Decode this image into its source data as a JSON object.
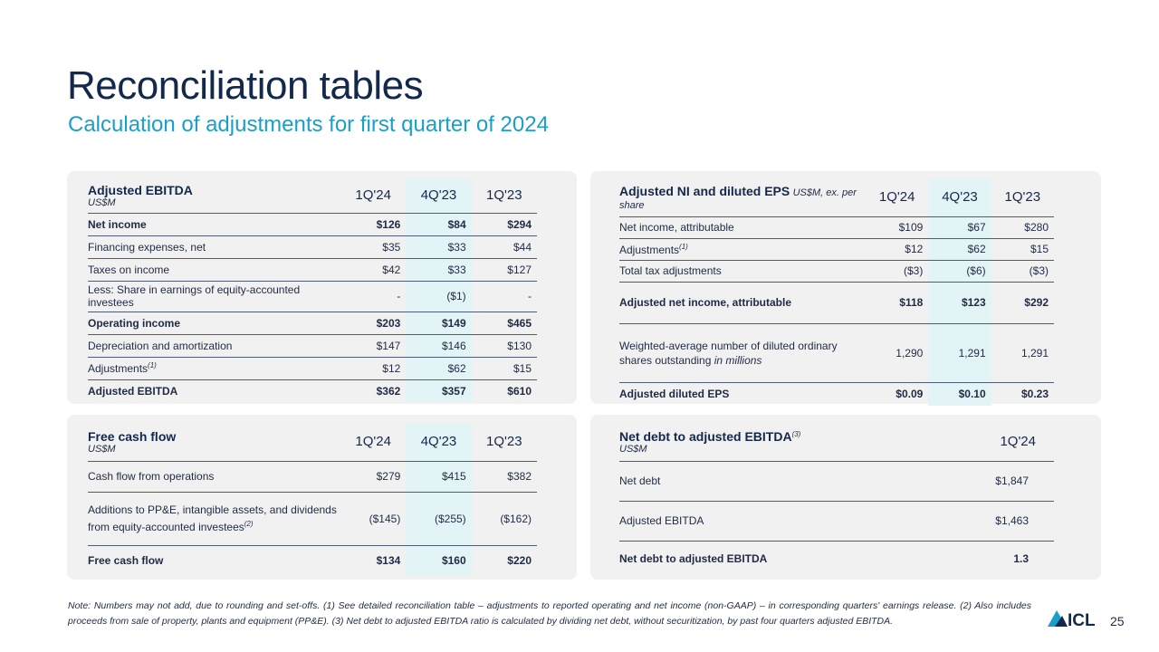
{
  "title": "Reconciliation tables",
  "subtitle": "Calculation of adjustments for first quarter of 2024",
  "colors": {
    "navy": "#14284b",
    "accent": "#1a9fc9",
    "panel": "#f1f1f1",
    "highlight": "#e3f4f6"
  },
  "ebitda": {
    "title": "Adjusted EBITDA",
    "unit": "US$M",
    "cols": [
      "1Q'24",
      "4Q'23",
      "1Q'23"
    ],
    "rows": [
      {
        "label": "Net income",
        "sup": "",
        "values": [
          "$126",
          "$84",
          "$294"
        ]
      },
      {
        "label": "Financing expenses, net",
        "sup": "",
        "values": [
          "$35",
          "$33",
          "$44"
        ]
      },
      {
        "label": "Taxes on income",
        "sup": "",
        "values": [
          "$42",
          "$33",
          "$127"
        ]
      },
      {
        "label": "Less: Share in earnings of equity-accounted investees",
        "sup": "",
        "values": [
          "-",
          "($1)",
          "-"
        ]
      },
      {
        "label": "Operating income",
        "sup": "",
        "values": [
          "$203",
          "$149",
          "$465"
        ]
      },
      {
        "label": "Depreciation and amortization",
        "sup": "",
        "values": [
          "$147",
          "$146",
          "$130"
        ]
      },
      {
        "label": "Adjustments",
        "sup": "(1)",
        "values": [
          "$12",
          "$62",
          "$15"
        ]
      },
      {
        "label": "Adjusted EBITDA",
        "sup": "",
        "values": [
          "$362",
          "$357",
          "$610"
        ]
      }
    ]
  },
  "eps": {
    "title": "Adjusted NI and diluted EPS",
    "unit": "US$M, ex. per share",
    "cols": [
      "1Q'24",
      "4Q'23",
      "1Q'23"
    ],
    "rows": [
      {
        "label": "Net income, attributable",
        "sup": "",
        "values": [
          "$109",
          "$67",
          "$280"
        ]
      },
      {
        "label": "Adjustments",
        "sup": "(1)",
        "values": [
          "$12",
          "$62",
          "$15"
        ]
      },
      {
        "label": "Total tax adjustments",
        "sup": "",
        "values": [
          "($3)",
          "($6)",
          "($3)"
        ]
      },
      {
        "label": "Adjusted net income, attributable",
        "sup": "",
        "values": [
          "$118",
          "$123",
          "$292"
        ]
      },
      {
        "label": "Weighted-average number of diluted ordinary shares outstanding",
        "label_italic": "in millions",
        "sup": "",
        "values": [
          "1,290",
          "1,291",
          "1,291"
        ]
      },
      {
        "label": "Adjusted diluted EPS",
        "sup": "",
        "values": [
          "$0.09",
          "$0.10",
          "$0.23"
        ]
      }
    ]
  },
  "fcf": {
    "title": "Free cash flow",
    "unit": "US$M",
    "cols": [
      "1Q'24",
      "4Q'23",
      "1Q'23"
    ],
    "rows": [
      {
        "label": "Cash flow from operations",
        "sup": "",
        "values": [
          "$279",
          "$415",
          "$382"
        ]
      },
      {
        "label": "Additions to PP&E, intangible assets, and dividends from equity-accounted investees",
        "sup": "(2)",
        "values": [
          "($145)",
          "($255)",
          "($162)"
        ]
      },
      {
        "label": "Free cash flow",
        "sup": "",
        "values": [
          "$134",
          "$160",
          "$220"
        ]
      }
    ]
  },
  "netdebt": {
    "title": "Net debt to adjusted EBITDA",
    "title_sup": "(3)",
    "unit": "US$M",
    "cols": [
      "1Q'24"
    ],
    "rows": [
      {
        "label": "Net debt",
        "sup": "",
        "values": [
          "$1,847"
        ]
      },
      {
        "label": "Adjusted EBITDA",
        "sup": "",
        "values": [
          "$1,463"
        ]
      },
      {
        "label": "Net debt to adjusted EBITDA",
        "sup": "",
        "values": [
          "1.3"
        ]
      }
    ]
  },
  "note": "Note: Numbers may not add, due to rounding and set-offs. (1) See detailed reconciliation table – adjustments to reported operating and net income (non-GAAP) – in corresponding quarters' earnings release. (2) Also includes proceeds from sale of property, plants and equipment (PP&E). (3) Net debt to adjusted EBITDA ratio is calculated by dividing net debt, without securitization, by past four quarters adjusted EBITDA.",
  "logo_text": "ICL",
  "page_number": "25"
}
